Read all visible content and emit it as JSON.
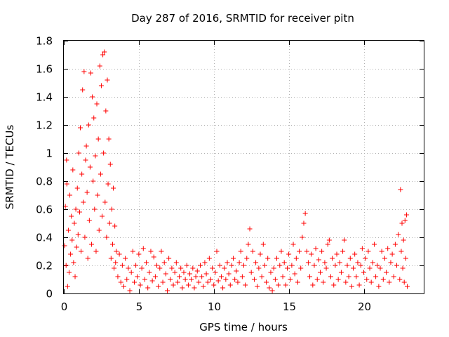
{
  "chart_data": {
    "type": "scatter",
    "title": "Day 287 of 2016, SRMTID for receiver pitn",
    "xlabel": "GPS time / hours",
    "ylabel": "SRMTID / TECUs",
    "xlim": [
      0,
      24
    ],
    "ylim": [
      0,
      1.8
    ],
    "xticks": [
      0,
      5,
      10,
      15,
      20
    ],
    "yticks": [
      0,
      0.2,
      0.4,
      0.6,
      0.8,
      1,
      1.2,
      1.4,
      1.6,
      1.8
    ],
    "ytick_labels": [
      "0",
      "0.2",
      "0.4",
      "0.6",
      "0.8",
      "1",
      "1.2",
      "1.4",
      "1.6",
      "1.8"
    ],
    "grid": true,
    "marker": "+",
    "series_color": "#ff0000",
    "series": [
      {
        "name": "SRMTID",
        "points": [
          [
            0.05,
            0.34
          ],
          [
            0.1,
            0.62
          ],
          [
            0.15,
            0.2
          ],
          [
            0.18,
            0.95
          ],
          [
            0.2,
            0.78
          ],
          [
            0.25,
            0.05
          ],
          [
            0.3,
            0.45
          ],
          [
            0.35,
            0.15
          ],
          [
            0.4,
            0.7
          ],
          [
            0.45,
            0.28
          ],
          [
            0.5,
            0.55
          ],
          [
            0.55,
            0.38
          ],
          [
            0.6,
            0.88
          ],
          [
            0.65,
            0.22
          ],
          [
            0.7,
            0.5
          ],
          [
            0.75,
            0.12
          ],
          [
            0.8,
            0.6
          ],
          [
            0.85,
            0.33
          ],
          [
            0.9,
            0.75
          ],
          [
            0.95,
            0.42
          ],
          [
            1.0,
            1.0
          ],
          [
            1.05,
            0.58
          ],
          [
            1.1,
            1.18
          ],
          [
            1.15,
            0.3
          ],
          [
            1.2,
            0.85
          ],
          [
            1.25,
            1.45
          ],
          [
            1.3,
            0.65
          ],
          [
            1.35,
            1.58
          ],
          [
            1.4,
            0.4
          ],
          [
            1.45,
            0.95
          ],
          [
            1.5,
            1.05
          ],
          [
            1.55,
            0.72
          ],
          [
            1.6,
            0.25
          ],
          [
            1.65,
            1.2
          ],
          [
            1.7,
            0.52
          ],
          [
            1.75,
            0.9
          ],
          [
            1.8,
            1.57
          ],
          [
            1.85,
            0.35
          ],
          [
            1.9,
            1.4
          ],
          [
            1.95,
            0.8
          ],
          [
            2.0,
            1.25
          ],
          [
            2.05,
            0.6
          ],
          [
            2.1,
            0.98
          ],
          [
            2.15,
            0.3
          ],
          [
            2.2,
            1.35
          ],
          [
            2.25,
            0.7
          ],
          [
            2.3,
            1.1
          ],
          [
            2.35,
            0.45
          ],
          [
            2.4,
            1.62
          ],
          [
            2.45,
            0.85
          ],
          [
            2.5,
            1.48
          ],
          [
            2.55,
            0.55
          ],
          [
            2.6,
            1.7
          ],
          [
            2.65,
            1.0
          ],
          [
            2.7,
            1.72
          ],
          [
            2.75,
            0.65
          ],
          [
            2.8,
            1.3
          ],
          [
            2.85,
            0.4
          ],
          [
            2.9,
            1.52
          ],
          [
            2.95,
            0.78
          ],
          [
            3.0,
            1.1
          ],
          [
            3.05,
            0.5
          ],
          [
            3.1,
            0.92
          ],
          [
            3.15,
            0.25
          ],
          [
            3.2,
            0.6
          ],
          [
            3.25,
            0.35
          ],
          [
            3.3,
            0.75
          ],
          [
            3.35,
            0.18
          ],
          [
            3.4,
            0.48
          ],
          [
            3.45,
            0.22
          ],
          [
            3.5,
            0.3
          ],
          [
            3.6,
            0.12
          ],
          [
            3.7,
            0.28
          ],
          [
            3.8,
            0.08
          ],
          [
            3.9,
            0.2
          ],
          [
            4.0,
            0.05
          ],
          [
            4.1,
            0.25
          ],
          [
            4.2,
            0.1
          ],
          [
            4.3,
            0.18
          ],
          [
            4.4,
            0.02
          ],
          [
            4.5,
            0.15
          ],
          [
            4.6,
            0.3
          ],
          [
            4.7,
            0.08
          ],
          [
            4.8,
            0.2
          ],
          [
            4.9,
            0.12
          ],
          [
            5.0,
            0.28
          ],
          [
            5.1,
            0.06
          ],
          [
            5.2,
            0.18
          ],
          [
            5.3,
            0.32
          ],
          [
            5.4,
            0.1
          ],
          [
            5.5,
            0.22
          ],
          [
            5.6,
            0.04
          ],
          [
            5.7,
            0.15
          ],
          [
            5.8,
            0.3
          ],
          [
            5.9,
            0.09
          ],
          [
            6.0,
            0.26
          ],
          [
            6.1,
            0.12
          ],
          [
            6.2,
            0.2
          ],
          [
            6.3,
            0.05
          ],
          [
            6.4,
            0.18
          ],
          [
            6.5,
            0.3
          ],
          [
            6.6,
            0.08
          ],
          [
            6.7,
            0.22
          ],
          [
            6.8,
            0.14
          ],
          [
            6.9,
            0.02
          ],
          [
            7.0,
            0.25
          ],
          [
            7.1,
            0.1
          ],
          [
            7.2,
            0.18
          ],
          [
            7.3,
            0.06
          ],
          [
            7.4,
            0.15
          ],
          [
            7.5,
            0.22
          ],
          [
            7.6,
            0.08
          ],
          [
            7.7,
            0.12
          ],
          [
            7.8,
            0.18
          ],
          [
            7.9,
            0.04
          ],
          [
            8.0,
            0.15
          ],
          [
            8.1,
            0.1
          ],
          [
            8.2,
            0.2
          ],
          [
            8.3,
            0.06
          ],
          [
            8.4,
            0.14
          ],
          [
            8.5,
            0.1
          ],
          [
            8.6,
            0.18
          ],
          [
            8.7,
            0.04
          ],
          [
            8.8,
            0.12
          ],
          [
            8.9,
            0.16
          ],
          [
            9.0,
            0.08
          ],
          [
            9.1,
            0.2
          ],
          [
            9.2,
            0.12
          ],
          [
            9.3,
            0.05
          ],
          [
            9.4,
            0.22
          ],
          [
            9.5,
            0.14
          ],
          [
            9.6,
            0.08
          ],
          [
            9.7,
            0.25
          ],
          [
            9.8,
            0.1
          ],
          [
            9.9,
            0.18
          ],
          [
            10.0,
            0.06
          ],
          [
            10.1,
            0.15
          ],
          [
            10.2,
            0.3
          ],
          [
            10.3,
            0.09
          ],
          [
            10.4,
            0.2
          ],
          [
            10.5,
            0.12
          ],
          [
            10.6,
            0.04
          ],
          [
            10.7,
            0.18
          ],
          [
            10.8,
            0.1
          ],
          [
            10.9,
            0.22
          ],
          [
            11.0,
            0.14
          ],
          [
            11.1,
            0.06
          ],
          [
            11.2,
            0.2
          ],
          [
            11.3,
            0.25
          ],
          [
            11.4,
            0.1
          ],
          [
            11.5,
            0.16
          ],
          [
            11.6,
            0.08
          ],
          [
            11.7,
            0.22
          ],
          [
            11.8,
            0.3
          ],
          [
            11.9,
            0.12
          ],
          [
            12.0,
            0.2
          ],
          [
            12.1,
            0.06
          ],
          [
            12.2,
            0.25
          ],
          [
            12.3,
            0.35
          ],
          [
            12.4,
            0.46
          ],
          [
            12.5,
            0.15
          ],
          [
            12.6,
            0.3
          ],
          [
            12.7,
            0.1
          ],
          [
            12.8,
            0.22
          ],
          [
            12.9,
            0.05
          ],
          [
            13.0,
            0.18
          ],
          [
            13.1,
            0.28
          ],
          [
            13.2,
            0.12
          ],
          [
            13.3,
            0.35
          ],
          [
            13.4,
            0.2
          ],
          [
            13.5,
            0.08
          ],
          [
            13.6,
            0.25
          ],
          [
            13.7,
            0.04
          ],
          [
            13.8,
            0.15
          ],
          [
            13.9,
            0.02
          ],
          [
            14.0,
            0.18
          ],
          [
            14.1,
            0.1
          ],
          [
            14.2,
            0.25
          ],
          [
            14.3,
            0.06
          ],
          [
            14.4,
            0.2
          ],
          [
            14.5,
            0.3
          ],
          [
            14.6,
            0.12
          ],
          [
            14.7,
            0.22
          ],
          [
            14.8,
            0.06
          ],
          [
            14.9,
            0.18
          ],
          [
            15.0,
            0.28
          ],
          [
            15.1,
            0.1
          ],
          [
            15.2,
            0.2
          ],
          [
            15.3,
            0.35
          ],
          [
            15.4,
            0.14
          ],
          [
            15.5,
            0.25
          ],
          [
            15.6,
            0.08
          ],
          [
            15.7,
            0.3
          ],
          [
            15.8,
            0.18
          ],
          [
            15.9,
            0.4
          ],
          [
            16.0,
            0.5
          ],
          [
            16.1,
            0.57
          ],
          [
            16.2,
            0.3
          ],
          [
            16.3,
            0.22
          ],
          [
            16.4,
            0.12
          ],
          [
            16.5,
            0.28
          ],
          [
            16.6,
            0.06
          ],
          [
            16.7,
            0.2
          ],
          [
            16.8,
            0.32
          ],
          [
            16.9,
            0.1
          ],
          [
            17.0,
            0.24
          ],
          [
            17.1,
            0.15
          ],
          [
            17.2,
            0.3
          ],
          [
            17.3,
            0.08
          ],
          [
            17.4,
            0.22
          ],
          [
            17.5,
            0.18
          ],
          [
            17.6,
            0.35
          ],
          [
            17.7,
            0.38
          ],
          [
            17.8,
            0.12
          ],
          [
            17.9,
            0.25
          ],
          [
            18.0,
            0.06
          ],
          [
            18.1,
            0.2
          ],
          [
            18.2,
            0.28
          ],
          [
            18.3,
            0.1
          ],
          [
            18.4,
            0.22
          ],
          [
            18.5,
            0.15
          ],
          [
            18.6,
            0.3
          ],
          [
            18.7,
            0.38
          ],
          [
            18.8,
            0.08
          ],
          [
            18.9,
            0.2
          ],
          [
            19.0,
            0.12
          ],
          [
            19.1,
            0.25
          ],
          [
            19.2,
            0.05
          ],
          [
            19.3,
            0.18
          ],
          [
            19.4,
            0.28
          ],
          [
            19.5,
            0.12
          ],
          [
            19.6,
            0.22
          ],
          [
            19.7,
            0.06
          ],
          [
            19.8,
            0.2
          ],
          [
            19.9,
            0.32
          ],
          [
            20.0,
            0.15
          ],
          [
            20.1,
            0.25
          ],
          [
            20.2,
            0.1
          ],
          [
            20.3,
            0.3
          ],
          [
            20.4,
            0.18
          ],
          [
            20.5,
            0.08
          ],
          [
            20.6,
            0.22
          ],
          [
            20.7,
            0.35
          ],
          [
            20.8,
            0.12
          ],
          [
            20.9,
            0.2
          ],
          [
            21.0,
            0.05
          ],
          [
            21.1,
            0.18
          ],
          [
            21.2,
            0.3
          ],
          [
            21.3,
            0.1
          ],
          [
            21.4,
            0.25
          ],
          [
            21.5,
            0.15
          ],
          [
            21.6,
            0.32
          ],
          [
            21.7,
            0.08
          ],
          [
            21.8,
            0.22
          ],
          [
            21.9,
            0.28
          ],
          [
            22.0,
            0.12
          ],
          [
            22.1,
            0.35
          ],
          [
            22.2,
            0.2
          ],
          [
            22.3,
            0.42
          ],
          [
            22.4,
            0.1
          ],
          [
            22.45,
            0.74
          ],
          [
            22.5,
            0.3
          ],
          [
            22.55,
            0.5
          ],
          [
            22.6,
            0.18
          ],
          [
            22.65,
            0.38
          ],
          [
            22.7,
            0.08
          ],
          [
            22.75,
            0.52
          ],
          [
            22.8,
            0.25
          ],
          [
            22.85,
            0.56
          ],
          [
            22.9,
            0.05
          ]
        ]
      }
    ]
  }
}
